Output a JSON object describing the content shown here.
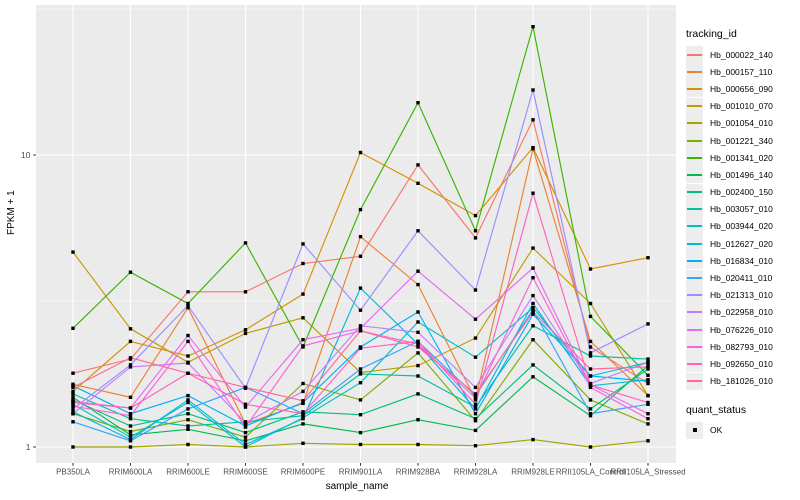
{
  "colors": {
    "panel_bg": "#EBEBEB",
    "grid": "#FFFFFF",
    "axis_text": "#4D4D4D",
    "tick_mark": "#333333",
    "point": "#000000",
    "legend_key_bg": "#EDEDED"
  },
  "legend": {
    "series_title": "tracking_id",
    "points_title": "quant_status",
    "points_entry": "OK"
  },
  "chart_data": {
    "type": "line",
    "title": "",
    "xlabel": "sample_name",
    "ylabel": "FPKM + 1",
    "y_scale": "log10",
    "ylim": [
      0.88,
      32.4
    ],
    "y_ticks": [
      1,
      10
    ],
    "y_tick_labels": [
      "1",
      "10"
    ],
    "y_minor_ticks": [
      3.162,
      31.62
    ],
    "grid": true,
    "legend_position": "right",
    "point_shape": "filled-square",
    "categories": [
      "PB350LA",
      "RRIM600LA",
      "RRIM600LE",
      "RRIM600SE",
      "RRIM600PE",
      "RRIM901LA",
      "RRIM928BA",
      "RRIM928LA",
      "RRIM928LE",
      "RRII105LA_Control",
      "RRII105LA_Stressed"
    ],
    "series": [
      {
        "name": "Hb_000022_140",
        "color": "#F8766D",
        "values": [
          1.79,
          2.0,
          3.4,
          3.4,
          4.25,
          4.5,
          9.25,
          5.2,
          13.2,
          2.2,
          1.65
        ]
      },
      {
        "name": "Hb_000157_110",
        "color": "#EA8331",
        "values": [
          1.64,
          1.48,
          3.0,
          1.2,
          1.41,
          5.25,
          3.6,
          1.45,
          10.5,
          2.3,
          1.5
        ]
      },
      {
        "name": "Hb_000656_090",
        "color": "#D89000",
        "values": [
          1.55,
          2.3,
          2.05,
          2.52,
          3.34,
          10.2,
          8.0,
          6.2,
          10.6,
          4.07,
          4.45
        ]
      },
      {
        "name": "Hb_001010_070",
        "color": "#C09B00",
        "values": [
          4.65,
          2.54,
          1.95,
          2.45,
          2.77,
          1.8,
          1.9,
          2.36,
          4.8,
          3.1,
          1.5
        ]
      },
      {
        "name": "Hb_001054_010",
        "color": "#A3A500",
        "values": [
          1.0,
          1.0,
          1.02,
          1.0,
          1.03,
          1.02,
          1.02,
          1.01,
          1.06,
          1.0,
          1.05
        ]
      },
      {
        "name": "Hb_001221_340",
        "color": "#7CAE00",
        "values": [
          1.3,
          1.13,
          1.24,
          1.08,
          1.65,
          1.45,
          2.1,
          1.23,
          2.33,
          1.45,
          1.2
        ]
      },
      {
        "name": "Hb_001341_020",
        "color": "#39B600",
        "values": [
          2.55,
          3.97,
          3.1,
          5.0,
          2.2,
          6.5,
          15.1,
          5.5,
          27.5,
          2.8,
          1.76
        ]
      },
      {
        "name": "Hb_001496_140",
        "color": "#00BB4E",
        "values": [
          1.48,
          1.1,
          1.15,
          1.05,
          1.2,
          1.12,
          1.24,
          1.14,
          1.74,
          1.28,
          1.9
        ]
      },
      {
        "name": "Hb_002400_150",
        "color": "#00BF7D",
        "values": [
          1.45,
          1.18,
          1.3,
          1.12,
          1.32,
          1.29,
          1.52,
          1.25,
          1.91,
          1.35,
          1.85
        ]
      },
      {
        "name": "Hb_003057_010",
        "color": "#00C1A3",
        "values": [
          1.52,
          1.25,
          1.18,
          1.22,
          1.28,
          1.78,
          1.75,
          1.37,
          2.6,
          2.05,
          2.0
        ]
      },
      {
        "name": "Hb_003944_020",
        "color": "#00BFC4",
        "values": [
          1.4,
          1.08,
          1.42,
          1.0,
          1.26,
          1.66,
          2.68,
          2.03,
          3.0,
          1.75,
          1.95
        ]
      },
      {
        "name": "Hb_012627_020",
        "color": "#00BAE0",
        "values": [
          1.32,
          1.06,
          1.45,
          1.02,
          1.25,
          3.5,
          2.25,
          1.35,
          3.1,
          1.62,
          1.7
        ]
      },
      {
        "name": "Hb_016834_010",
        "color": "#00B0F6",
        "values": [
          1.62,
          1.3,
          1.5,
          1.18,
          1.42,
          2.2,
          2.9,
          1.3,
          2.85,
          1.75,
          1.68
        ]
      },
      {
        "name": "Hb_020411_010",
        "color": "#35A2FF",
        "values": [
          1.22,
          1.05,
          1.35,
          1.6,
          1.3,
          1.85,
          2.3,
          1.5,
          2.95,
          1.3,
          1.4
        ]
      },
      {
        "name": "Hb_021313_010",
        "color": "#9590FF",
        "values": [
          1.35,
          1.91,
          3.05,
          1.59,
          4.96,
          2.94,
          5.5,
          3.45,
          16.7,
          2.1,
          2.64
        ]
      },
      {
        "name": "Hb_022958_010",
        "color": "#C77CFF",
        "values": [
          1.3,
          1.88,
          1.94,
          1.21,
          1.55,
          2.6,
          2.47,
          1.6,
          3.3,
          1.65,
          1.95
        ]
      },
      {
        "name": "Hb_076226_010",
        "color": "#E76BF3",
        "values": [
          1.43,
          1.36,
          2.41,
          1.37,
          2.33,
          2.55,
          4.0,
          2.74,
          4.1,
          1.63,
          1.3
        ]
      },
      {
        "name": "Hb_082793_010",
        "color": "#FA62DB",
        "values": [
          1.38,
          1.28,
          2.3,
          1.17,
          2.22,
          2.5,
          2.25,
          1.47,
          3.8,
          1.6,
          1.25
        ]
      },
      {
        "name": "Hb_092650_010",
        "color": "#FF61C3",
        "values": [
          1.42,
          1.36,
          1.79,
          1.4,
          1.3,
          2.18,
          2.3,
          1.4,
          7.4,
          1.63,
          1.42
        ]
      },
      {
        "name": "Hb_181026_010",
        "color": "#FF6A98",
        "values": [
          1.6,
          2.02,
          1.79,
          1.6,
          1.44,
          2.5,
          2.2,
          1.52,
          2.9,
          1.85,
          1.88
        ]
      }
    ]
  }
}
